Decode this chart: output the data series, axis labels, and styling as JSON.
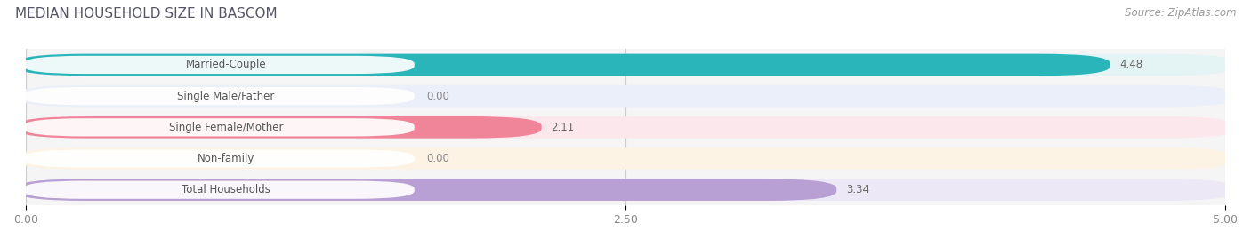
{
  "title": "MEDIAN HOUSEHOLD SIZE IN BASCOM",
  "source": "Source: ZipAtlas.com",
  "categories": [
    "Married-Couple",
    "Single Male/Father",
    "Single Female/Mother",
    "Non-family",
    "Total Households"
  ],
  "values": [
    4.48,
    0.0,
    2.11,
    0.0,
    3.34
  ],
  "bar_colors": [
    "#29b5ba",
    "#9ab4e8",
    "#f0859a",
    "#f5c98a",
    "#b89fd4"
  ],
  "bar_bg_colors": [
    "#e4f4f5",
    "#eaeffa",
    "#fce8ec",
    "#fdf3e4",
    "#ece8f5"
  ],
  "value_text_colors": [
    "#ffffff",
    "#777777",
    "#777777",
    "#777777",
    "#777777"
  ],
  "xlim": [
    0,
    5.0
  ],
  "xticks": [
    0.0,
    2.5,
    5.0
  ],
  "xticklabels": [
    "0.00",
    "2.50",
    "5.00"
  ],
  "background_color": "#ffffff",
  "plot_bg_color": "#f5f5f5",
  "title_fontsize": 11,
  "source_fontsize": 8.5,
  "label_fontsize": 8.5,
  "value_fontsize": 8.5,
  "bar_height": 0.62
}
